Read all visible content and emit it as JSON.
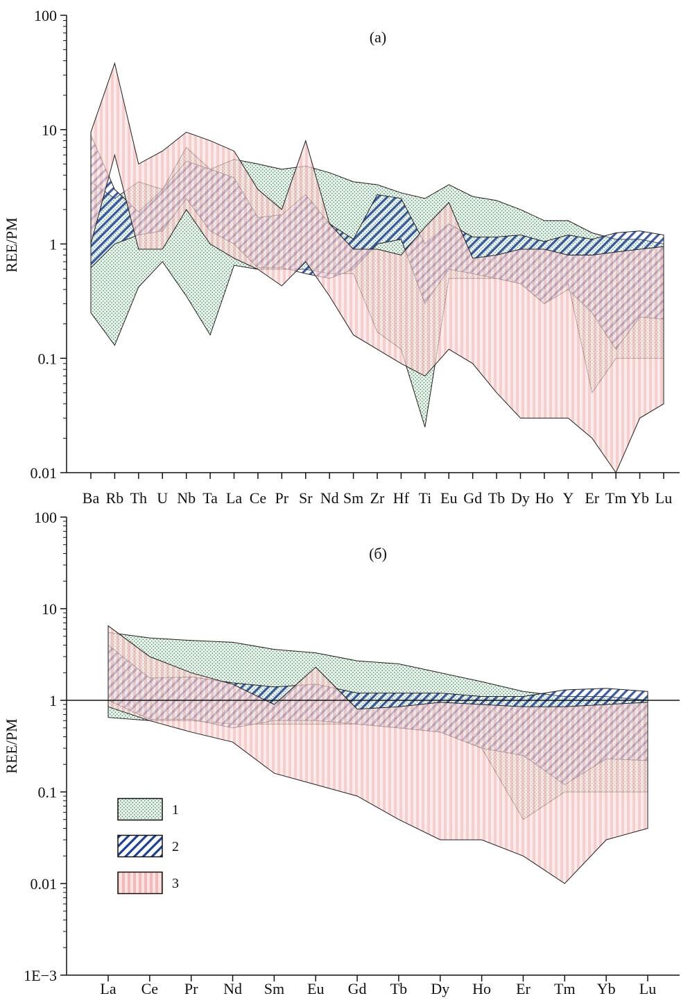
{
  "chart_data": [
    {
      "type": "area",
      "title": "(а)",
      "ylabel": "REE/PM",
      "yscale": "log",
      "ylim": [
        0.01,
        100
      ],
      "yticks": [
        "0.01",
        "0.1",
        "1",
        "10",
        "100"
      ],
      "categories": [
        "Ba",
        "Rb",
        "Th",
        "U",
        "Nb",
        "Ta",
        "La",
        "Ce",
        "Pr",
        "Sr",
        "Nd",
        "Sm",
        "Zr",
        "Hf",
        "Ti",
        "Eu",
        "Gd",
        "Tb",
        "Dy",
        "Ho",
        "Y",
        "Er",
        "Tm",
        "Yb",
        "Lu"
      ],
      "series": [
        {
          "name": "1",
          "color": "#8fc3a0",
          "upper": [
            3.5,
            2.5,
            3.5,
            3.0,
            7.0,
            4.5,
            5.5,
            5.0,
            4.5,
            4.8,
            4.2,
            3.5,
            3.3,
            2.8,
            2.5,
            3.3,
            2.6,
            2.4,
            2.0,
            1.6,
            1.6,
            1.25,
            1.1,
            1.1,
            1.0
          ],
          "lower": [
            0.25,
            0.13,
            0.42,
            0.7,
            0.35,
            0.16,
            0.65,
            0.6,
            0.6,
            0.6,
            0.55,
            0.55,
            0.17,
            0.12,
            0.025,
            0.5,
            0.5,
            0.5,
            0.45,
            0.3,
            0.45,
            0.05,
            0.1,
            0.1,
            0.1
          ]
        },
        {
          "name": "2",
          "color": "#1a3f9a",
          "upper": [
            9.0,
            3.0,
            1.9,
            3.0,
            5.3,
            4.5,
            3.8,
            1.7,
            1.8,
            2.7,
            1.5,
            1.1,
            2.7,
            2.5,
            1.0,
            1.5,
            1.15,
            1.15,
            1.2,
            1.05,
            1.2,
            1.1,
            1.25,
            1.3,
            1.2
          ],
          "lower": [
            0.62,
            1.0,
            1.2,
            1.3,
            2.5,
            1.3,
            1.0,
            0.62,
            0.62,
            0.55,
            0.5,
            0.6,
            1.0,
            1.1,
            0.3,
            0.6,
            0.55,
            0.5,
            0.45,
            0.3,
            0.4,
            0.25,
            0.12,
            0.23,
            0.22
          ]
        },
        {
          "name": "3",
          "color": "#f3c3c3",
          "upper": [
            9.5,
            38,
            5.0,
            6.5,
            9.5,
            8.0,
            6.5,
            3.0,
            2.0,
            8.0,
            1.5,
            0.9,
            0.9,
            0.8,
            1.4,
            2.3,
            0.75,
            0.8,
            0.9,
            0.9,
            0.8,
            0.8,
            0.85,
            0.9,
            0.95
          ],
          "lower": [
            1.0,
            6.0,
            0.9,
            0.9,
            2.0,
            1.0,
            0.75,
            0.6,
            0.43,
            0.7,
            0.35,
            0.16,
            0.12,
            0.09,
            0.07,
            0.12,
            0.09,
            0.05,
            0.03,
            0.03,
            0.03,
            0.02,
            0.01,
            0.03,
            0.04
          ]
        }
      ]
    },
    {
      "type": "area",
      "title": "(б)",
      "ylabel": "REE/PM",
      "yscale": "log",
      "ylim": [
        0.001,
        100
      ],
      "yticks": [
        "1E−3",
        "0.01",
        "0.1",
        "1",
        "10",
        "100"
      ],
      "reference_line": 1,
      "categories": [
        "La",
        "Ce",
        "Pr",
        "Nd",
        "Sm",
        "Eu",
        "Gd",
        "Tb",
        "Dy",
        "Ho",
        "Er",
        "Tm",
        "Yb",
        "Lu"
      ],
      "series": [
        {
          "name": "1",
          "color": "#8fc3a0",
          "upper": [
            5.5,
            4.8,
            4.5,
            4.3,
            3.6,
            3.3,
            2.7,
            2.5,
            2.0,
            1.6,
            1.25,
            1.1,
            1.1,
            1.0
          ],
          "lower": [
            0.65,
            0.6,
            0.6,
            0.55,
            0.55,
            0.55,
            0.55,
            0.5,
            0.45,
            0.3,
            0.05,
            0.1,
            0.1,
            0.1
          ]
        },
        {
          "name": "2",
          "color": "#1a3f9a",
          "upper": [
            4.0,
            1.75,
            1.8,
            1.55,
            1.4,
            1.5,
            1.2,
            1.2,
            1.2,
            1.1,
            1.1,
            1.3,
            1.35,
            1.25
          ],
          "lower": [
            1.0,
            0.62,
            0.62,
            0.5,
            0.6,
            0.6,
            0.55,
            0.5,
            0.45,
            0.3,
            0.25,
            0.12,
            0.23,
            0.22
          ]
        },
        {
          "name": "3",
          "color": "#f3c3c3",
          "upper": [
            6.5,
            3.0,
            2.0,
            1.5,
            0.9,
            2.3,
            0.8,
            0.85,
            0.95,
            0.9,
            0.85,
            0.85,
            0.9,
            0.95
          ],
          "lower": [
            0.85,
            0.6,
            0.45,
            0.35,
            0.16,
            0.12,
            0.09,
            0.05,
            0.03,
            0.03,
            0.02,
            0.01,
            0.03,
            0.04
          ]
        }
      ]
    }
  ],
  "legend": {
    "placement": "bottom-left of panel (б)",
    "items": [
      {
        "label": "1",
        "pattern": "dotted",
        "color": "#8fc3a0"
      },
      {
        "label": "2",
        "pattern": "diagonal-hatch",
        "color": "#1a3f9a"
      },
      {
        "label": "3",
        "pattern": "vertical-stripes",
        "color": "#f3c3c3"
      }
    ]
  }
}
